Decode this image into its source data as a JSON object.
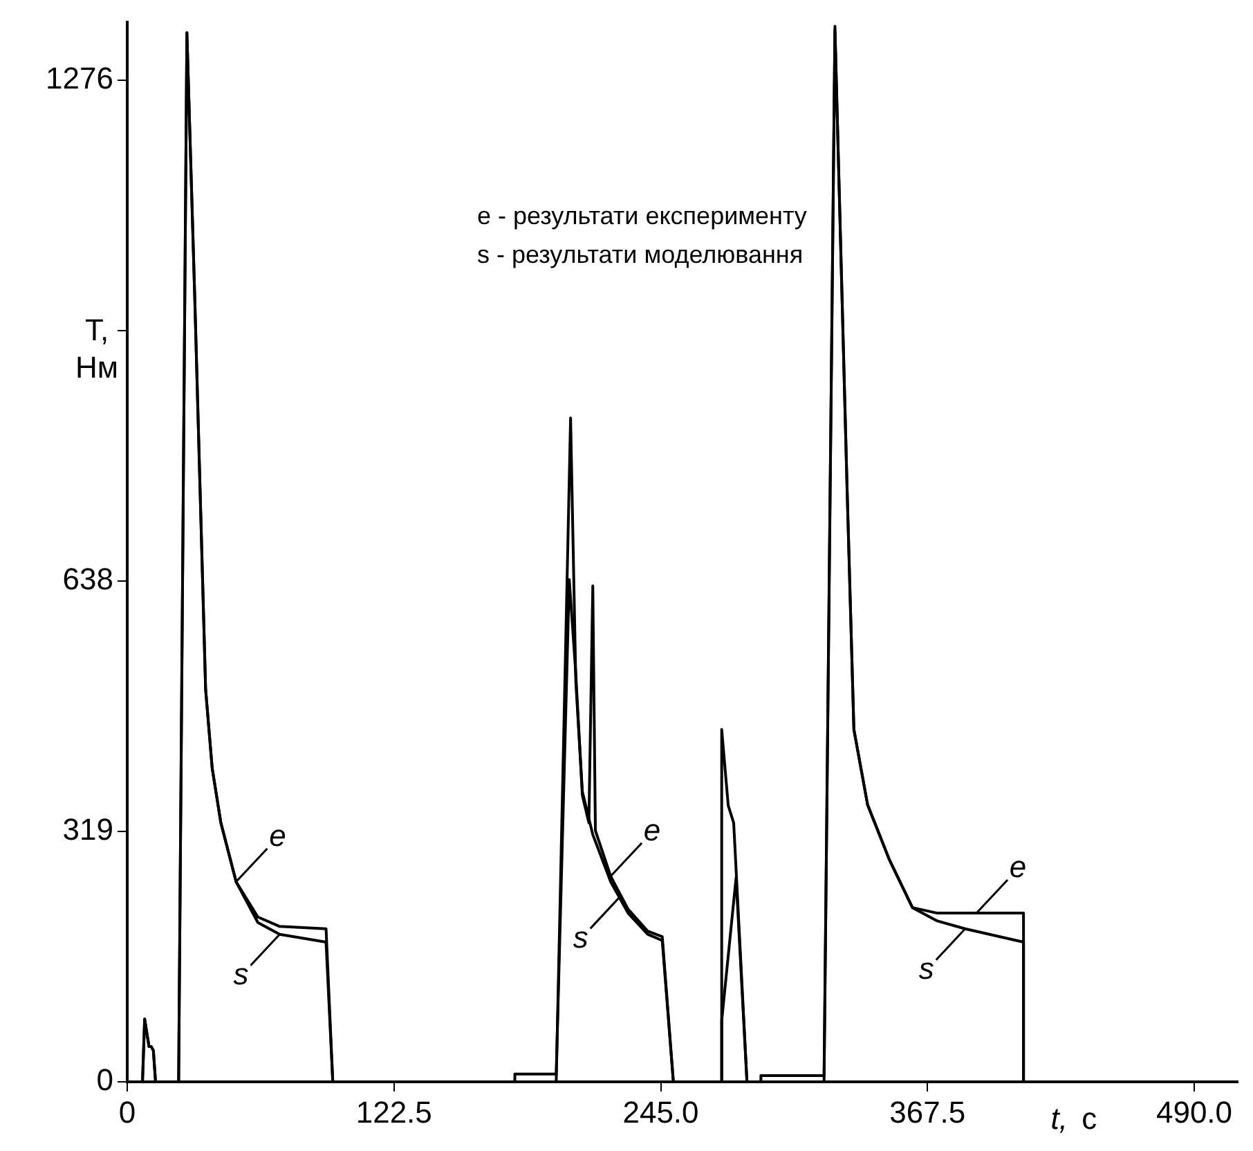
{
  "chart_data": {
    "type": "line",
    "xlabel": "t, с",
    "ylabel": "T, Нм",
    "xlim": [
      0,
      510
    ],
    "ylim": [
      0,
      1350
    ],
    "xticks": [
      0,
      {
        "value": 122.5,
        "label": "122.5"
      },
      {
        "value": 245,
        "label": "245.0"
      },
      {
        "value": 367.5,
        "label": "367.5"
      },
      {
        "value": 490,
        "label": "490.0"
      }
    ],
    "yticks": [
      0,
      319,
      638,
      {
        "value": 957,
        "label": null
      },
      1276
    ],
    "grid": false,
    "legend": false,
    "marker": "none",
    "line_style": "solid",
    "series": [
      {
        "color": "#000000",
        "x": [
          0,
          7,
          8,
          10,
          11,
          12,
          13,
          23.6,
          27.4,
          31,
          34,
          36,
          39,
          43,
          50,
          60,
          70,
          91.3,
          94.4,
          178,
          178,
          197,
          203,
          206,
          209,
          212,
          213.8,
          215,
          222,
          230,
          239,
          245.7,
          250.8,
          273,
          273,
          276,
          278.5,
          284.6,
          291,
          291,
          320,
          325,
          330.6,
          333.7,
          340,
          350,
          360.6,
          372,
          411.6,
          411.6,
          490
        ],
        "values": [
          0,
          0,
          80,
          45,
          45,
          40,
          0,
          0,
          1337,
          1000,
          700,
          500,
          400,
          330,
          255,
          210,
          198,
          195,
          0,
          0,
          10,
          10,
          640,
          520,
          365,
          330,
          632,
          320,
          262,
          220,
          192,
          185,
          0,
          0,
          449,
          352,
          330,
          0,
          0,
          8,
          8,
          1345,
          754,
          449,
          353,
          283,
          222,
          215,
          215,
          0,
          0
        ]
      },
      {
        "color": "#000000",
        "x": [
          0,
          7,
          8,
          10,
          11,
          12,
          13,
          23.6,
          27.4,
          31,
          34,
          36,
          39,
          43,
          50,
          60,
          70,
          91.3,
          94.4,
          197,
          203.6,
          206,
          209,
          213.8,
          222,
          230,
          239,
          245.7,
          250.8,
          273,
          273,
          279.6,
          284.6,
          320,
          325,
          330.6,
          333.7,
          340,
          350,
          360.6,
          372,
          384.8,
          411.6,
          411.6,
          490
        ],
        "values": [
          0,
          0,
          80,
          45,
          45,
          40,
          0,
          0,
          1337,
          1000,
          700,
          500,
          400,
          330,
          255,
          203,
          188,
          178,
          0,
          0,
          846,
          510,
          370,
          315,
          255,
          215,
          188,
          180,
          0,
          0,
          78,
          260,
          0,
          0,
          1340,
          754,
          449,
          353,
          283,
          222,
          205,
          195,
          178,
          0,
          0
        ]
      }
    ],
    "annotations": [
      "e - результати експерименту",
      "s - результати моделювання",
      {
        "text": "e",
        "x": 50,
        "y": 255
      },
      {
        "text": "s",
        "x": 70,
        "y": 188
      },
      {
        "text": "e",
        "x": 222,
        "y": 262
      },
      {
        "text": "s",
        "x": 226,
        "y": 235
      },
      {
        "text": "e",
        "x": 390,
        "y": 215
      },
      {
        "text": "s",
        "x": 384.8,
        "y": 195
      }
    ]
  }
}
